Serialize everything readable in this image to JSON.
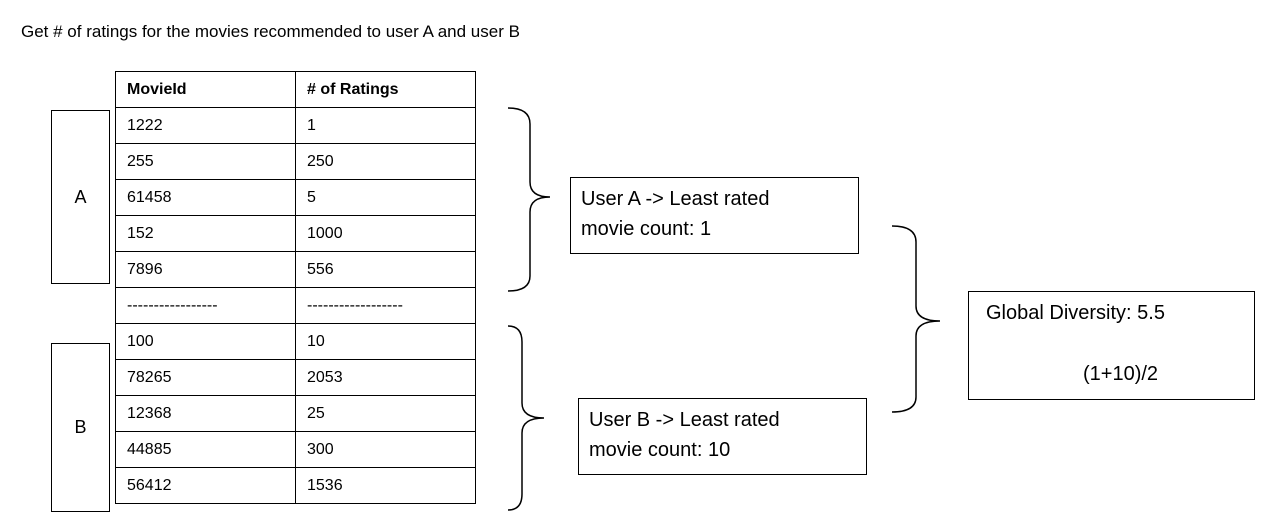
{
  "title": "Get # of ratings for the movies recommended to user A and user B",
  "table": {
    "headers": [
      "MovieId",
      "# of Ratings"
    ],
    "rows": [
      [
        "1222",
        "1"
      ],
      [
        "255",
        "250"
      ],
      [
        "61458",
        "5"
      ],
      [
        "152",
        "1000"
      ],
      [
        "7896",
        "556"
      ],
      [
        "-----------------",
        "------------------"
      ],
      [
        "100",
        "10"
      ],
      [
        "78265",
        "2053"
      ],
      [
        "12368",
        "25"
      ],
      [
        "44885",
        "300"
      ],
      [
        "56412",
        "1536"
      ]
    ]
  },
  "groups": [
    {
      "label": "A"
    },
    {
      "label": "B"
    }
  ],
  "summaries": [
    {
      "line1": "User A ->  Least rated",
      "line2": "movie count: 1"
    },
    {
      "line1": "User B ->  Least rated",
      "line2": "movie count: 10"
    }
  ],
  "diversity": {
    "line1": "Global Diversity: 5.5",
    "line2": "(1+10)/2"
  }
}
